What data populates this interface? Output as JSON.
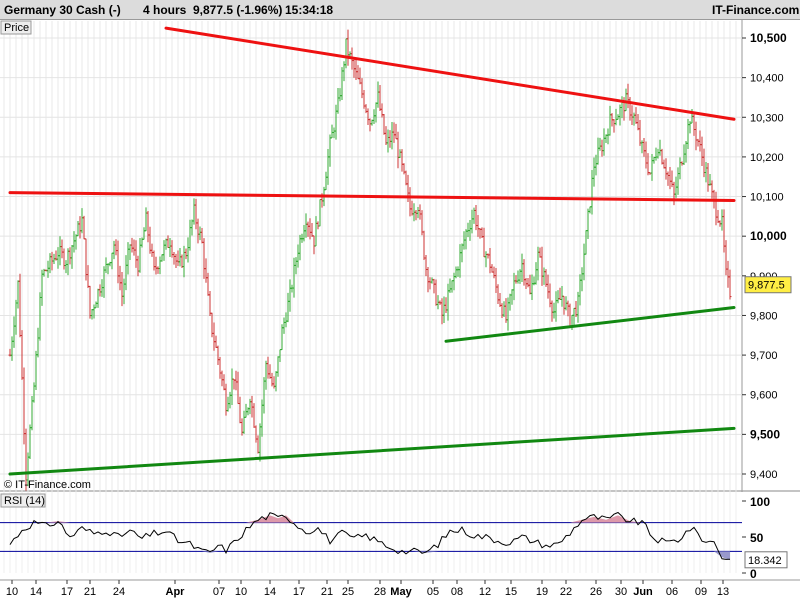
{
  "header": {
    "title": "Germany 30 Cash (-)",
    "interval": "4 hours",
    "price_change": "9,877.5 (-1.96%)",
    "time": "15:34:18",
    "brand": "IT-Finance.com"
  },
  "colors": {
    "up_candle": "#33aa33",
    "down_candle": "#cc3333",
    "resistance_line": "#ee1111",
    "support_line": "#118811",
    "rsi_line": "#000000",
    "rsi_band": "#000099",
    "rsi_overbought_fill": "#dd99aa",
    "rsi_oversold_fill": "#9999cc",
    "price_tag_bg": "#ffee44"
  },
  "chart_data": [
    {
      "type": "candlestick",
      "panel_label": "Price",
      "watermark": "© IT-Finance.com",
      "ylim": [
        9380,
        10580
      ],
      "y_ticks": [
        9400,
        9500,
        9600,
        9700,
        9800,
        9900,
        10000,
        10100,
        10200,
        10300,
        10400,
        10500
      ],
      "y_tick_labels": [
        "9,400",
        "9,500",
        "9,600",
        "9,700",
        "9,800",
        "9,900",
        "10,000",
        "10,100",
        "10,200",
        "10,300",
        "10,400",
        "10,500"
      ],
      "x_tick_labels": [
        "10",
        "14",
        "17",
        "21",
        "24",
        "Apr",
        "07",
        "10",
        "14",
        "17",
        "21",
        "25",
        "28",
        "May",
        "05",
        "08",
        "12",
        "15",
        "19",
        "22",
        "26",
        "30",
        "Jun",
        "06",
        "09",
        "13"
      ],
      "last_price_label": "9,877.5",
      "close_path": [
        [
          0,
          9700
        ],
        [
          4,
          9880
        ],
        [
          8,
          9400
        ],
        [
          12,
          9620
        ],
        [
          16,
          9900
        ],
        [
          20,
          9930
        ],
        [
          24,
          9960
        ],
        [
          28,
          9940
        ],
        [
          32,
          9990
        ],
        [
          36,
          10040
        ],
        [
          40,
          9800
        ],
        [
          44,
          9860
        ],
        [
          48,
          9920
        ],
        [
          52,
          9980
        ],
        [
          56,
          9850
        ],
        [
          60,
          9980
        ],
        [
          64,
          9930
        ],
        [
          68,
          10040
        ],
        [
          72,
          9910
        ],
        [
          76,
          9960
        ],
        [
          80,
          9990
        ],
        [
          84,
          9920
        ],
        [
          88,
          9960
        ],
        [
          92,
          10060
        ],
        [
          96,
          9980
        ],
        [
          100,
          9790
        ],
        [
          104,
          9690
        ],
        [
          108,
          9580
        ],
        [
          112,
          9650
        ],
        [
          116,
          9500
        ],
        [
          120,
          9600
        ],
        [
          124,
          9470
        ],
        [
          128,
          9680
        ],
        [
          132,
          9610
        ],
        [
          136,
          9760
        ],
        [
          140,
          9850
        ],
        [
          144,
          9970
        ],
        [
          148,
          10050
        ],
        [
          152,
          9990
        ],
        [
          156,
          10100
        ],
        [
          160,
          10230
        ],
        [
          164,
          10330
        ],
        [
          168,
          10480
        ],
        [
          172,
          10420
        ],
        [
          176,
          10360
        ],
        [
          180,
          10290
        ],
        [
          184,
          10350
        ],
        [
          188,
          10230
        ],
        [
          192,
          10260
        ],
        [
          196,
          10170
        ],
        [
          200,
          10070
        ],
        [
          204,
          10080
        ],
        [
          208,
          9920
        ],
        [
          212,
          9860
        ],
        [
          216,
          9800
        ],
        [
          220,
          9860
        ],
        [
          224,
          9930
        ],
        [
          228,
          10010
        ],
        [
          232,
          10060
        ],
        [
          236,
          9980
        ],
        [
          240,
          9930
        ],
        [
          244,
          9850
        ],
        [
          248,
          9790
        ],
        [
          252,
          9880
        ],
        [
          256,
          9930
        ],
        [
          260,
          9850
        ],
        [
          264,
          9950
        ],
        [
          268,
          9880
        ],
        [
          272,
          9810
        ],
        [
          276,
          9850
        ],
        [
          280,
          9790
        ],
        [
          284,
          9830
        ],
        [
          288,
          10000
        ],
        [
          292,
          10180
        ],
        [
          296,
          10230
        ],
        [
          300,
          10290
        ],
        [
          304,
          10310
        ],
        [
          308,
          10340
        ],
        [
          312,
          10300
        ],
        [
          316,
          10220
        ],
        [
          320,
          10160
        ],
        [
          324,
          10230
        ],
        [
          328,
          10170
        ],
        [
          332,
          10100
        ],
        [
          336,
          10200
        ],
        [
          340,
          10300
        ],
        [
          344,
          10240
        ],
        [
          348,
          10160
        ],
        [
          352,
          10080
        ],
        [
          356,
          10030
        ],
        [
          358,
          9900
        ],
        [
          360,
          9860
        ]
      ],
      "trend_lines": [
        {
          "color": "red",
          "from": [
            78,
            10525
          ],
          "to": [
            362,
            10295
          ]
        },
        {
          "color": "red",
          "from": [
            0,
            10110
          ],
          "to": [
            362,
            10090
          ]
        },
        {
          "color": "green",
          "from": [
            218,
            9735
          ],
          "to": [
            362,
            9820
          ]
        },
        {
          "color": "green",
          "from": [
            0,
            9400
          ],
          "to": [
            362,
            9515
          ]
        }
      ]
    },
    {
      "type": "line",
      "panel_label": "RSI (14)",
      "ylim": [
        0,
        100
      ],
      "y_ticks": [
        0,
        50,
        100
      ],
      "y_tick_labels": [
        "0",
        "50",
        "100"
      ],
      "bands": [
        30,
        70
      ],
      "last_value_label": "18.342",
      "path": [
        [
          0,
          40
        ],
        [
          6,
          60
        ],
        [
          12,
          70
        ],
        [
          18,
          65
        ],
        [
          24,
          72
        ],
        [
          30,
          50
        ],
        [
          36,
          62
        ],
        [
          42,
          55
        ],
        [
          48,
          60
        ],
        [
          54,
          50
        ],
        [
          60,
          58
        ],
        [
          66,
          48
        ],
        [
          72,
          55
        ],
        [
          78,
          58
        ],
        [
          84,
          45
        ],
        [
          90,
          40
        ],
        [
          96,
          30
        ],
        [
          100,
          28
        ],
        [
          104,
          38
        ],
        [
          108,
          32
        ],
        [
          112,
          42
        ],
        [
          118,
          60
        ],
        [
          124,
          74
        ],
        [
          130,
          80
        ],
        [
          134,
          76
        ],
        [
          138,
          80
        ],
        [
          142,
          70
        ],
        [
          148,
          58
        ],
        [
          154,
          62
        ],
        [
          160,
          45
        ],
        [
          166,
          55
        ],
        [
          172,
          48
        ],
        [
          178,
          52
        ],
        [
          184,
          44
        ],
        [
          190,
          36
        ],
        [
          196,
          30
        ],
        [
          202,
          30
        ],
        [
          208,
          28
        ],
        [
          214,
          40
        ],
        [
          220,
          58
        ],
        [
          226,
          60
        ],
        [
          232,
          52
        ],
        [
          238,
          50
        ],
        [
          244,
          45
        ],
        [
          250,
          42
        ],
        [
          256,
          50
        ],
        [
          262,
          44
        ],
        [
          268,
          38
        ],
        [
          274,
          40
        ],
        [
          280,
          56
        ],
        [
          286,
          74
        ],
        [
          292,
          78
        ],
        [
          298,
          74
        ],
        [
          304,
          80
        ],
        [
          310,
          72
        ],
        [
          316,
          70
        ],
        [
          322,
          48
        ],
        [
          328,
          42
        ],
        [
          334,
          46
        ],
        [
          340,
          62
        ],
        [
          344,
          55
        ],
        [
          348,
          42
        ],
        [
          352,
          45
        ],
        [
          356,
          22
        ],
        [
          360,
          18
        ]
      ]
    }
  ]
}
